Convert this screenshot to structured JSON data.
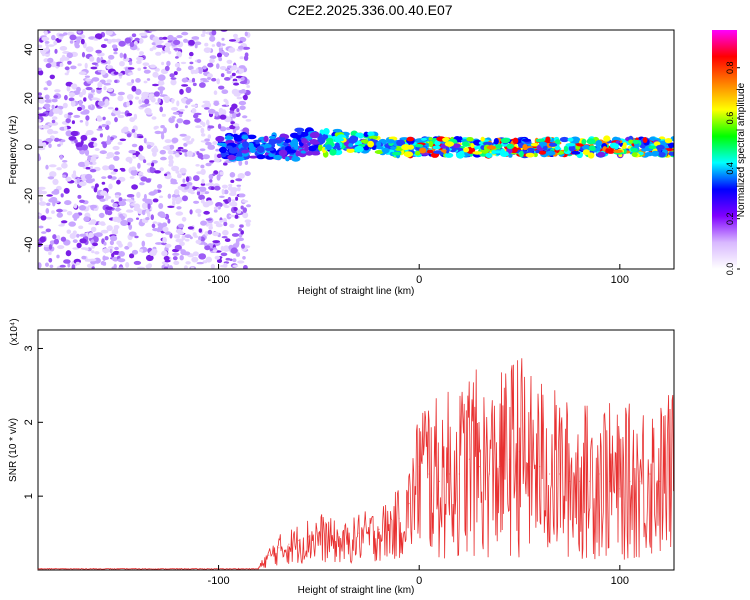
{
  "title": "C2E2.2025.336.00.40.E07",
  "chart_data": [
    {
      "type": "heatmap",
      "name": "spectrogram",
      "xlabel": "Height of straight line (km)",
      "ylabel": "Frequency (Hz)",
      "xlim": [
        -190,
        127
      ],
      "ylim": [
        -50,
        48
      ],
      "xticks": [
        -100,
        0,
        100
      ],
      "xtick_labels": [
        "-100",
        "0",
        "100"
      ],
      "yticks": [
        -40,
        -20,
        0,
        20,
        40
      ],
      "ytick_labels": [
        "-40",
        "-20",
        "0",
        "20",
        "40"
      ],
      "noise_region_x": [
        -190,
        -85
      ],
      "signal_band_hz": [
        -5,
        5
      ],
      "colorbar": {
        "label": "Normalized spectral amplitude",
        "range": [
          0,
          0.95
        ],
        "ticks": [
          0.0,
          0.2,
          0.4,
          0.6,
          0.8
        ],
        "tick_labels": [
          "0.0",
          "0.2",
          "0.4",
          "0.6",
          "0.8"
        ],
        "colors": [
          "#ffffff",
          "#d8b8ff",
          "#8000ff",
          "#0000ff",
          "#00ffff",
          "#00ff00",
          "#ffff00",
          "#ff8000",
          "#ff0000",
          "#ff00ff"
        ]
      }
    },
    {
      "type": "line",
      "name": "snr",
      "xlabel": "Height of straight line (km)",
      "ylabel": "SNR (10 * v/v)",
      "scale_label": "(x10⁴)",
      "xlim": [
        -190,
        127
      ],
      "ylim": [
        0,
        3.25
      ],
      "xticks": [
        -100,
        0,
        100
      ],
      "xtick_labels": [
        "-100",
        "0",
        "100"
      ],
      "yticks": [
        1,
        2,
        3
      ],
      "ytick_labels": [
        "1",
        "2",
        "3"
      ],
      "color": "#e83030",
      "x": [
        -190,
        -170,
        -150,
        -130,
        -110,
        -90,
        -80,
        -75,
        -70,
        -65,
        -60,
        -55,
        -50,
        -45,
        -40,
        -35,
        -30,
        -25,
        -20,
        -15,
        -10,
        -5,
        0,
        5,
        10,
        15,
        20,
        25,
        30,
        35,
        40,
        45,
        50,
        55,
        60,
        65,
        70,
        75,
        80,
        85,
        90,
        95,
        100,
        105,
        110,
        115,
        120,
        125
      ],
      "values": [
        0.01,
        0.01,
        0.01,
        0.01,
        0.01,
        0.02,
        0.03,
        0.2,
        0.3,
        0.35,
        0.4,
        0.45,
        0.5,
        0.45,
        0.4,
        0.4,
        0.5,
        0.5,
        0.55,
        0.6,
        0.7,
        0.9,
        1.4,
        1.3,
        1.2,
        1.3,
        1.3,
        1.5,
        1.4,
        1.3,
        1.4,
        1.5,
        1.6,
        1.4,
        1.4,
        1.3,
        1.3,
        1.2,
        1.2,
        1.2,
        1.3,
        1.2,
        1.1,
        1.2,
        1.2,
        1.3,
        1.2,
        1.3
      ]
    }
  ]
}
